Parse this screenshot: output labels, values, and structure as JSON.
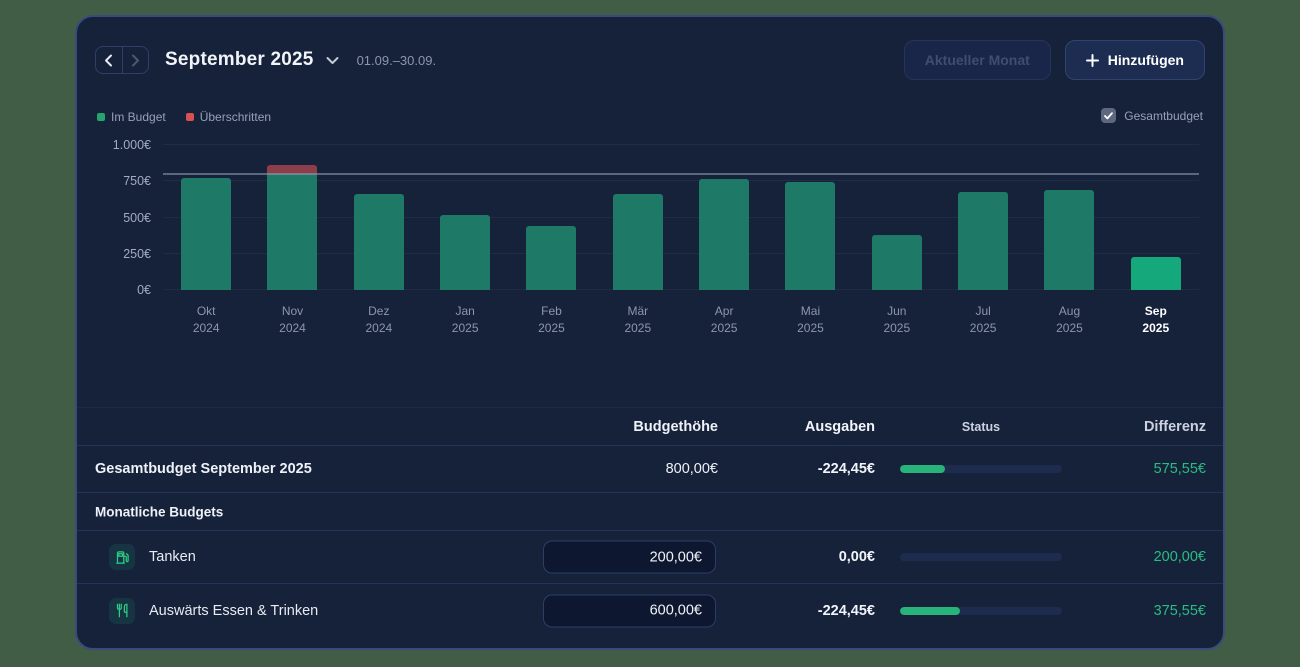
{
  "header": {
    "title": "September 2025",
    "date_range": "01.09.–30.09.",
    "current_month_button": "Aktueller Monat",
    "add_button": "Hinzufügen"
  },
  "legend": {
    "items": [
      {
        "label": "Im Budget",
        "color": "#23a56d"
      },
      {
        "label": "Überschritten",
        "color": "#d8504f"
      }
    ],
    "checkbox_label": "Gesamtbudget",
    "checkbox_checked": true
  },
  "chart_data": {
    "type": "bar",
    "unit": "€",
    "ylim": [
      0,
      1000
    ],
    "ytick_values": [
      0,
      250,
      500,
      750,
      1000
    ],
    "ytick_labels": [
      "0€",
      "250€",
      "500€",
      "750€",
      "1.000€"
    ],
    "budget_line": 800,
    "grid": true,
    "legend": [
      "Im Budget",
      "Überschritten"
    ],
    "bars": [
      {
        "month": "Okt",
        "year": "2024",
        "value": 770,
        "current": false
      },
      {
        "month": "Nov",
        "year": "2024",
        "value": 860,
        "current": false
      },
      {
        "month": "Dez",
        "year": "2024",
        "value": 660,
        "current": false
      },
      {
        "month": "Jan",
        "year": "2025",
        "value": 515,
        "current": false
      },
      {
        "month": "Feb",
        "year": "2025",
        "value": 440,
        "current": false
      },
      {
        "month": "Mär",
        "year": "2025",
        "value": 660,
        "current": false
      },
      {
        "month": "Apr",
        "year": "2025",
        "value": 765,
        "current": false
      },
      {
        "month": "Mai",
        "year": "2025",
        "value": 745,
        "current": false
      },
      {
        "month": "Jun",
        "year": "2025",
        "value": 380,
        "current": false
      },
      {
        "month": "Jul",
        "year": "2025",
        "value": 675,
        "current": false
      },
      {
        "month": "Aug",
        "year": "2025",
        "value": 690,
        "current": false
      },
      {
        "month": "Sep",
        "year": "2025",
        "value": 224.45,
        "current": true
      }
    ],
    "colors": {
      "bar": "#1e7a66",
      "bar_current": "#14a87a",
      "overspend": "#8d3e4d",
      "budget_line": "#96a0b4"
    }
  },
  "table": {
    "columns": [
      "Budgethöhe",
      "Ausgaben",
      "Status",
      "Differenz"
    ],
    "total_row": {
      "name": "Gesamtbudget September 2025",
      "budget": "800,00€",
      "spent": "-224,45€",
      "progress_percent": 28,
      "difference": "575,55€"
    },
    "section_title": "Monatliche Budgets",
    "budget_rows": [
      {
        "name": "Tanken",
        "icon": "fuel-pump-icon",
        "budget_value": "200,00€",
        "spent": "0,00€",
        "progress_percent": 0,
        "difference": "200,00€"
      },
      {
        "name": "Auswärts Essen & Trinken",
        "icon": "utensils-icon",
        "budget_value": "600,00€",
        "spent": "-224,45€",
        "progress_percent": 37,
        "difference": "375,55€"
      }
    ],
    "difference_color": "#2abd81"
  }
}
